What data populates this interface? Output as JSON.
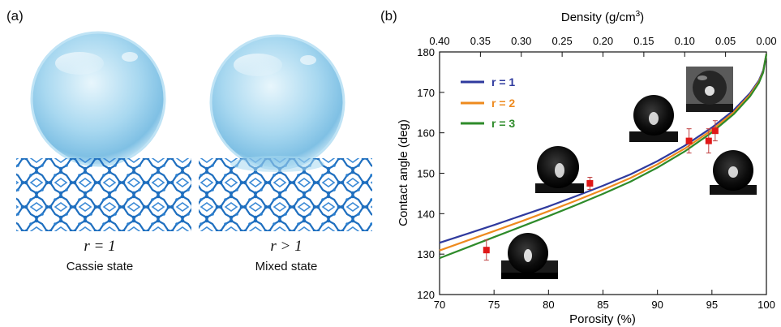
{
  "panels": {
    "a_label": "(a)",
    "b_label": "(b)"
  },
  "schematic": {
    "left": {
      "r_text": "r = 1",
      "state": "Cassie state"
    },
    "right": {
      "r_text": "r > 1",
      "state": "Mixed state"
    }
  },
  "colors": {
    "r1": "#2f3a9e",
    "r2": "#ee8a1e",
    "r3": "#2e8b2a",
    "points": "#e01818",
    "errorbars": "#c04040",
    "lattice": "#1f6fbf",
    "droplet": "#9fd4ef"
  },
  "chart_data": {
    "type": "line",
    "xlabel": "Porosity (%)",
    "ylabel": "Contact angle (deg)",
    "x2label": "Density (g/cm",
    "x2label_sup": "3",
    "x2label_end": ")",
    "xlim": [
      70,
      100
    ],
    "ylim": [
      120,
      180
    ],
    "xticks": [
      70,
      75,
      80,
      85,
      90,
      95,
      100
    ],
    "yticks": [
      120,
      130,
      140,
      150,
      160,
      170,
      180
    ],
    "top_ticks": [
      {
        "label": "0.40",
        "porosity": 70
      },
      {
        "label": "0.35",
        "porosity": 73.75
      },
      {
        "label": "0.30",
        "porosity": 77.5
      },
      {
        "label": "0.25",
        "porosity": 81.25
      },
      {
        "label": "0.20",
        "porosity": 85
      },
      {
        "label": "0.15",
        "porosity": 88.75
      },
      {
        "label": "0.10",
        "porosity": 92.5
      },
      {
        "label": "0.05",
        "porosity": 96.25
      },
      {
        "label": "0.00",
        "porosity": 100
      }
    ],
    "legend_position": "top-left",
    "series": [
      {
        "name": "r = 1",
        "color_key": "r1",
        "x": [
          70,
          72.5,
          75,
          77.5,
          80,
          82.5,
          85,
          87.5,
          90,
          92.5,
          95,
          97,
          98.5,
          99.3,
          99.7,
          100
        ],
        "y": [
          132.8,
          135.0,
          137.2,
          139.5,
          141.8,
          144.3,
          146.9,
          149.7,
          153.0,
          156.8,
          161.3,
          165.6,
          169.8,
          172.9,
          175.4,
          179.5
        ]
      },
      {
        "name": "r = 2",
        "color_key": "r2",
        "x": [
          70,
          72.5,
          75,
          77.5,
          80,
          82.5,
          85,
          87.5,
          90,
          92.5,
          95,
          97,
          98.5,
          99.3,
          99.7,
          100
        ],
        "y": [
          130.9,
          133.3,
          135.7,
          138.1,
          140.6,
          143.2,
          145.9,
          148.8,
          152.2,
          156.1,
          160.7,
          165.1,
          169.4,
          172.6,
          175.1,
          179.5
        ]
      },
      {
        "name": "r = 3",
        "color_key": "r3",
        "x": [
          70,
          72.5,
          75,
          77.5,
          80,
          82.5,
          85,
          87.5,
          90,
          92.5,
          95,
          97,
          98.5,
          99.3,
          99.7,
          100
        ],
        "y": [
          129.0,
          131.6,
          134.2,
          136.8,
          139.4,
          142.1,
          144.9,
          147.9,
          151.4,
          155.4,
          160.1,
          164.6,
          169.0,
          172.3,
          174.9,
          179.5
        ]
      }
    ],
    "points": [
      {
        "x": 74.3,
        "y": 131.0,
        "err": 2.5
      },
      {
        "x": 83.8,
        "y": 147.5,
        "err": 1.5
      },
      {
        "x": 92.9,
        "y": 158.0,
        "err": 3.0
      },
      {
        "x": 94.7,
        "y": 158.0,
        "err": 3.0
      },
      {
        "x": 95.3,
        "y": 160.5,
        "err": 2.5
      }
    ]
  }
}
